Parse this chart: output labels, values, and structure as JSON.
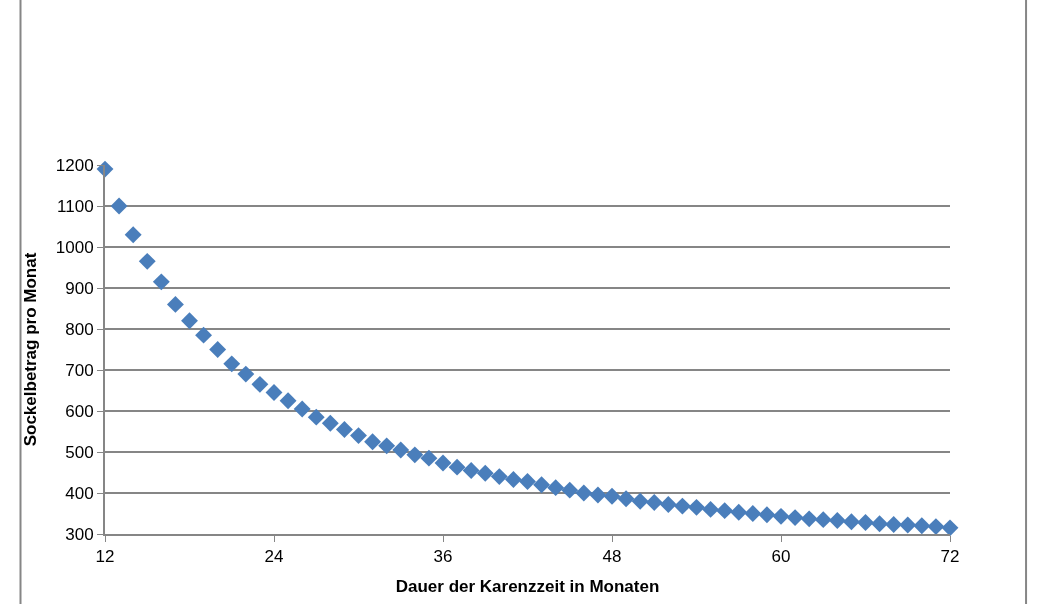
{
  "chart_data": {
    "type": "scatter",
    "xlabel": "Dauer der Karenzzeit in Monaten",
    "ylabel": "Sockelbetrag pro Monat",
    "x": [
      12,
      13,
      14,
      15,
      16,
      17,
      18,
      19,
      20,
      21,
      22,
      23,
      24,
      25,
      26,
      27,
      28,
      29,
      30,
      31,
      32,
      33,
      34,
      35,
      36,
      37,
      38,
      39,
      40,
      41,
      42,
      43,
      44,
      45,
      46,
      47,
      48,
      49,
      50,
      51,
      52,
      53,
      54,
      55,
      56,
      57,
      58,
      59,
      60,
      61,
      62,
      63,
      64,
      65,
      66,
      67,
      68,
      69,
      70,
      71,
      72
    ],
    "series": [
      {
        "color": "#4a7ebb",
        "values": [
          1190,
          1100,
          1030,
          965,
          915,
          860,
          820,
          785,
          750,
          715,
          690,
          665,
          645,
          625,
          605,
          585,
          570,
          555,
          540,
          525,
          515,
          505,
          493,
          485,
          473,
          463,
          455,
          448,
          440,
          433,
          428,
          420,
          413,
          407,
          400,
          395,
          392,
          386,
          380,
          377,
          372,
          368,
          365,
          360,
          357,
          353,
          350,
          347,
          343,
          340,
          337,
          335,
          333,
          330,
          328,
          325,
          323,
          322,
          320,
          318,
          315
        ]
      }
    ],
    "xlim": [
      12,
      72
    ],
    "xticks": [
      12,
      24,
      36,
      48,
      60,
      72
    ],
    "ylim": [
      300,
      1200
    ],
    "yticks": [
      300,
      400,
      500,
      600,
      700,
      800,
      900,
      1000,
      1100,
      1200
    ],
    "grid": "y",
    "legend": false,
    "marker": "diamond"
  }
}
